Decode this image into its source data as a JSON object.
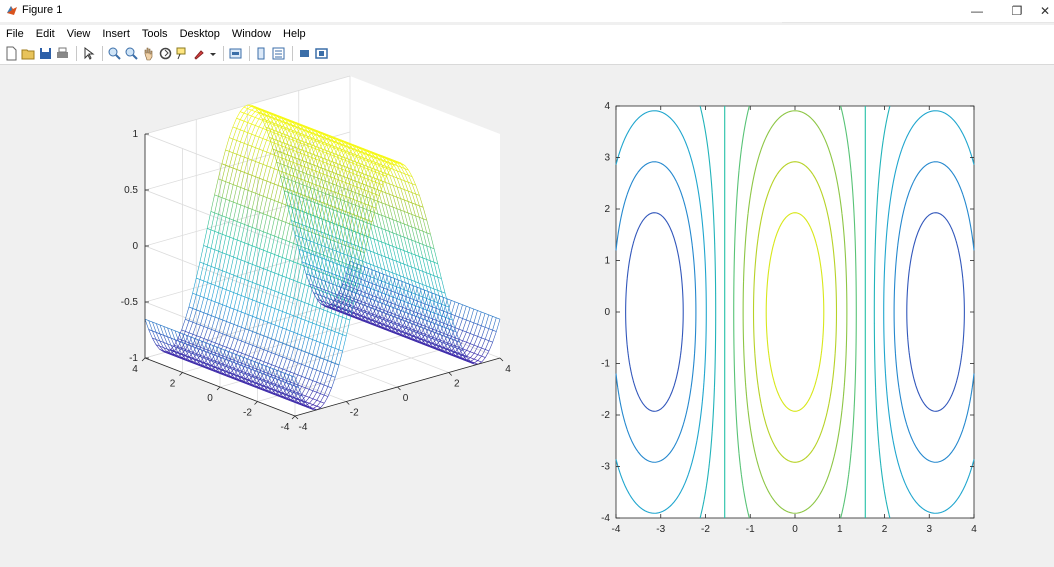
{
  "window": {
    "title": "Figure 1",
    "controls": {
      "minimize": "—",
      "restore": "❐",
      "close": "✕"
    }
  },
  "menu": {
    "items": [
      "File",
      "Edit",
      "View",
      "Insert",
      "Tools",
      "Desktop",
      "Window",
      "Help"
    ]
  },
  "toolbar": {
    "icons": [
      "new-figure-icon",
      "open-file-icon",
      "save-icon",
      "print-icon",
      "select-pointer-icon",
      "zoom-in-icon",
      "zoom-out-icon",
      "pan-icon",
      "rotate-3d-icon",
      "data-cursor-icon",
      "brush-icon",
      "brush-dropdown-icon",
      "link-plot-icon",
      "insert-colorbar-icon",
      "insert-legend-icon",
      "hide-plot-tools-icon",
      "show-plot-tools-icon"
    ]
  },
  "colors": {
    "low": "#3e26a8",
    "mid_low": "#1fa0d8",
    "mid": "#23c0a6",
    "mid_high": "#a7c82d",
    "high": "#f9fb0e"
  },
  "chart_data": [
    {
      "type": "mesh",
      "function": "z = cos(x)",
      "x_range": [
        -4,
        4
      ],
      "y_range": [
        -4,
        4
      ],
      "zlim": [
        -1,
        1
      ],
      "x_ticks": [
        "-4",
        "-2",
        "0",
        "2",
        "4"
      ],
      "y_ticks": [
        "-4",
        "-2",
        "0",
        "2",
        "4"
      ],
      "z_ticks": [
        "-1",
        "-0.5",
        "0",
        "0.5",
        "1"
      ],
      "grid": true,
      "colormap": "parula"
    },
    {
      "type": "contour",
      "function": "z = cos(x)",
      "xlim": [
        -4,
        4
      ],
      "ylim": [
        -4,
        4
      ],
      "x_ticks": [
        "-4",
        "-3",
        "-2",
        "-1",
        "0",
        "1",
        "2",
        "3",
        "4"
      ],
      "y_ticks": [
        "-4",
        "-3",
        "-2",
        "-1",
        "0",
        "1",
        "2",
        "3",
        "4"
      ],
      "levels": [
        -0.8,
        -0.6,
        -0.4,
        -0.2,
        0,
        0.2,
        0.4,
        0.6,
        0.8
      ],
      "grid": false,
      "colormap": "parula"
    }
  ]
}
